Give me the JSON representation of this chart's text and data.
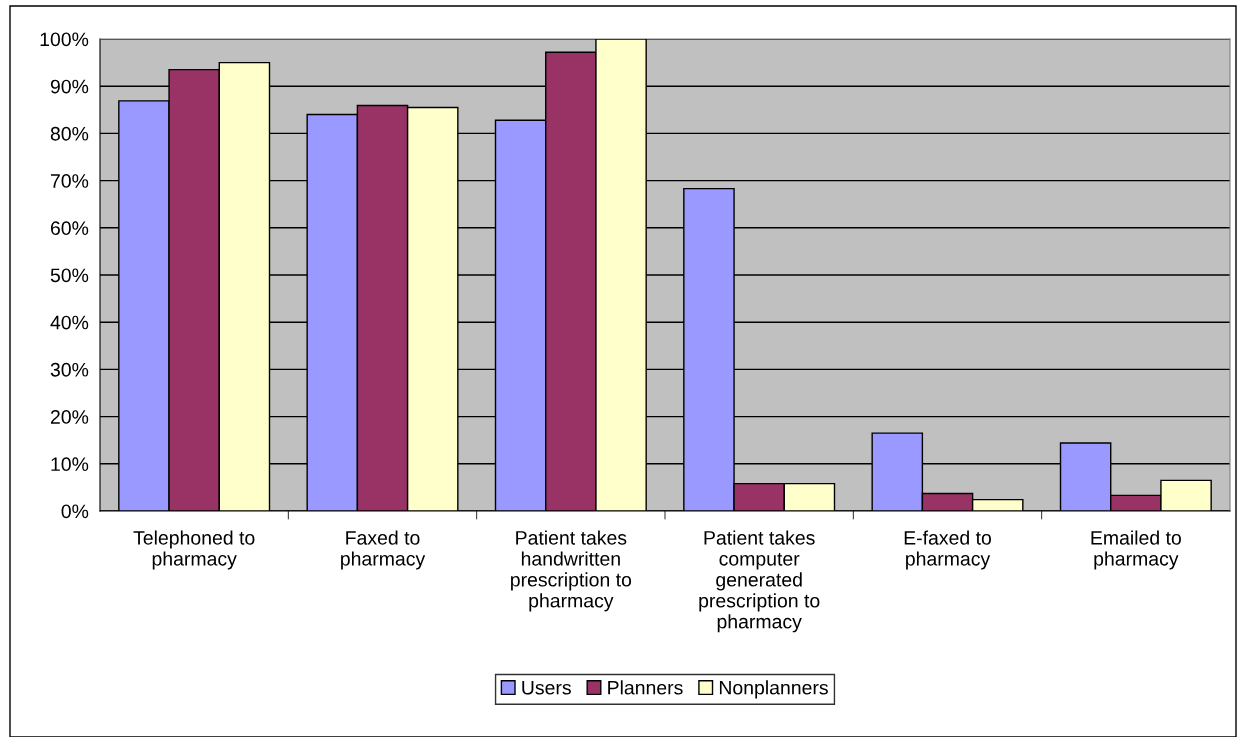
{
  "chart_data": {
    "type": "bar",
    "categories": [
      "Telephoned to\npharmacy",
      "Faxed to\npharmacy",
      "Patient takes\nhandwritten\nprescription to\npharmacy",
      "Patient takes\ncomputer\ngenerated\nprescription to\npharmacy",
      "E-faxed to\npharmacy",
      "Emailed to\npharmacy"
    ],
    "series": [
      {
        "name": "Users",
        "color": "#9999ff",
        "values": [
          86.9,
          84.0,
          82.8,
          68.3,
          16.5,
          14.4
        ]
      },
      {
        "name": "Planners",
        "color": "#993366",
        "values": [
          93.5,
          85.9,
          97.2,
          5.8,
          3.7,
          3.3
        ]
      },
      {
        "name": "Nonplanners",
        "color": "#ffffcc",
        "values": [
          95.0,
          85.5,
          100,
          5.8,
          2.4,
          6.5
        ]
      }
    ],
    "ylim": [
      0,
      100
    ],
    "yticks": [
      {
        "value": 0,
        "label": "0%"
      },
      {
        "value": 10,
        "label": "10%"
      },
      {
        "value": 20,
        "label": "20%"
      },
      {
        "value": 30,
        "label": "30%"
      },
      {
        "value": 40,
        "label": "40%"
      },
      {
        "value": 50,
        "label": "50%"
      },
      {
        "value": 60,
        "label": "60%"
      },
      {
        "value": 70,
        "label": "70%"
      },
      {
        "value": 80,
        "label": "80%"
      },
      {
        "value": 90,
        "label": "90%"
      },
      {
        "value": 100,
        "label": "100%"
      }
    ],
    "grid": "y",
    "legend": "bottom"
  }
}
